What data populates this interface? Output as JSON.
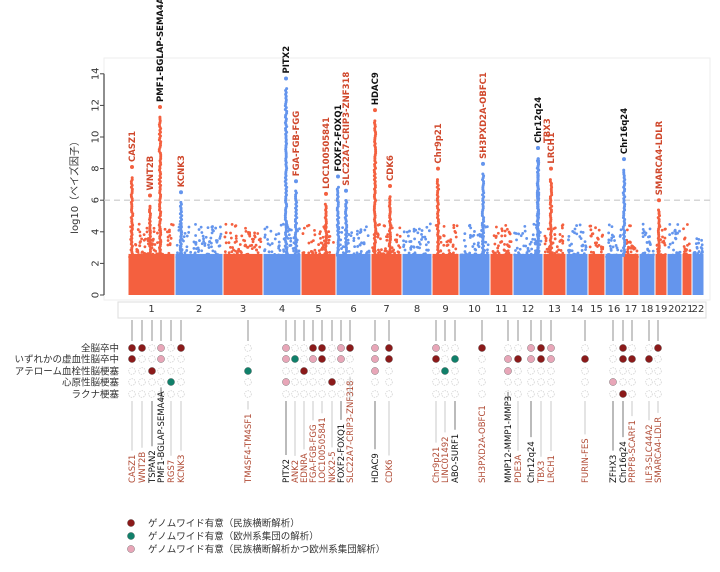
{
  "chart_data": {
    "type": "scatter",
    "subtype": "manhattan",
    "ylabel": "log10（ベイズ因子）",
    "ylim": [
      0,
      14
    ],
    "yticks": [
      0,
      2,
      4,
      6,
      8,
      10,
      12,
      14
    ],
    "threshold": 6,
    "grid": false,
    "colors": {
      "odd": "#f4603f",
      "even": "#6495ed",
      "label_red": "#d0482c",
      "label_black": "#111111",
      "threshold": "#c8c8c8"
    },
    "chromosomes": [
      "1",
      "2",
      "3",
      "4",
      "5",
      "6",
      "7",
      "8",
      "9",
      "10",
      "11",
      "12",
      "13",
      "14",
      "15",
      "16",
      "17",
      "18",
      "19",
      "20",
      "21",
      "22"
    ],
    "peaks": [
      {
        "label": "CASZ1",
        "chr": "1",
        "value": 8.1,
        "label_color": "red"
      },
      {
        "label": "WNT2B",
        "chr": "1",
        "value": 6.3,
        "label_color": "red"
      },
      {
        "label": "PMF1-BGLAP-SEMA4A",
        "chr": "1",
        "value": 11.9,
        "label_color": "black"
      },
      {
        "label": "KCNK3",
        "chr": "2",
        "value": 6.5,
        "label_color": "red"
      },
      {
        "label": "PITX2",
        "chr": "4",
        "value": 13.7,
        "label_color": "black"
      },
      {
        "label": "FGA-FGB-FGG",
        "chr": "4",
        "value": 7.2,
        "label_color": "red"
      },
      {
        "label": "LOC100505841",
        "chr": "5",
        "value": 6.4,
        "label_color": "red"
      },
      {
        "label": "FOXF2-FOXQ1",
        "chr": "6",
        "value": 7.5,
        "label_color": "black"
      },
      {
        "label": "SLC22A7-CRIP3-ZNF318",
        "chr": "6",
        "value": 6.6,
        "label_color": "red"
      },
      {
        "label": "HDAC9",
        "chr": "7",
        "value": 11.7,
        "label_color": "black"
      },
      {
        "label": "CDK6",
        "chr": "7",
        "value": 6.9,
        "label_color": "red"
      },
      {
        "label": "Chr9p21",
        "chr": "9",
        "value": 8.0,
        "label_color": "red"
      },
      {
        "label": "SH3PXD2A-OBFC1",
        "chr": "10",
        "value": 8.3,
        "label_color": "red"
      },
      {
        "label": "Chr12q24",
        "chr": "12",
        "value": 9.3,
        "label_color": "black"
      },
      {
        "label": "TBX3",
        "chr": "12",
        "value": 9.3,
        "label_color": "red"
      },
      {
        "label": "LRCH1",
        "chr": "13",
        "value": 8.0,
        "label_color": "red"
      },
      {
        "label": "Chr16q24",
        "chr": "16",
        "value": 8.6,
        "label_color": "black"
      },
      {
        "label": "SMARCA4-LDLR",
        "chr": "19",
        "value": 6.0,
        "label_color": "red"
      }
    ]
  },
  "matrix": {
    "rows": [
      "全脳卒中",
      "いずれかの虚血性脳卒中",
      "アテローム血栓性脳梗塞",
      "心原性脳梗塞",
      "ラクナ梗塞"
    ],
    "colors": {
      "D": "#8b1a1a",
      "G": "#10806a",
      "P": "#e8a6b8"
    },
    "columns": [
      {
        "gene": "CASZ1",
        "color": "red",
        "states": "DD000"
      },
      {
        "gene": "WNT2B",
        "color": "red",
        "states": "D0000"
      },
      {
        "gene": "TSPAN2",
        "color": "black",
        "states": "00D00"
      },
      {
        "gene": "PMF1-BGLAP-SEMA4A",
        "color": "black",
        "states": "PP000"
      },
      {
        "gene": "RGS7",
        "color": "red",
        "states": "000G0"
      },
      {
        "gene": "KCNK3",
        "color": "red",
        "states": "D0000"
      },
      {
        "gene": "TM4SF4-TM4SF1",
        "color": "red",
        "states": "00G00"
      },
      {
        "gene": "PITX2",
        "color": "black",
        "states": "PP0P0"
      },
      {
        "gene": "ANK2",
        "color": "red",
        "states": "0G000"
      },
      {
        "gene": "EDNRA",
        "color": "red",
        "states": "00D00"
      },
      {
        "gene": "FGA-FGB-FGG",
        "color": "red",
        "states": "DP000"
      },
      {
        "gene": "LOC100505841",
        "color": "red",
        "states": "DD000"
      },
      {
        "gene": "NKX2-5",
        "color": "red",
        "states": "000D0"
      },
      {
        "gene": "FOXF2-FOXQ1",
        "color": "black",
        "states": "PP000"
      },
      {
        "gene": "SLC22A7-CRIP3-ZNF318",
        "color": "red",
        "states": "D0000"
      },
      {
        "gene": "HDAC9",
        "color": "black",
        "states": "PPP00"
      },
      {
        "gene": "CDK6",
        "color": "red",
        "states": "DD000"
      },
      {
        "gene": "Chr9p21",
        "color": "red",
        "states": "PD000"
      },
      {
        "gene": "LINC01492",
        "color": "red",
        "states": "00G00"
      },
      {
        "gene": "ABO-SURF1",
        "color": "black",
        "states": "0G000"
      },
      {
        "gene": "SH3PXD2A-OBFC1",
        "color": "red",
        "states": "D0000"
      },
      {
        "gene": "MMP12-MMP1-MMP3",
        "color": "black",
        "states": "0PP00"
      },
      {
        "gene": "PDE3A",
        "color": "red",
        "states": "0D000"
      },
      {
        "gene": "Chr12q24",
        "color": "black",
        "states": "PP000"
      },
      {
        "gene": "TBX3",
        "color": "red",
        "states": "DD000"
      },
      {
        "gene": "LRCH1",
        "color": "red",
        "states": "PP000"
      },
      {
        "gene": "FURIN-FES",
        "color": "red",
        "states": "0D000"
      },
      {
        "gene": "ZFHX3",
        "color": "black",
        "states": "000P0"
      },
      {
        "gene": "Chr16q24",
        "color": "black",
        "states": "DD00D"
      },
      {
        "gene": "PRPF8-SCARF1",
        "color": "red",
        "states": "0D000"
      },
      {
        "gene": "ILF3-SLC44A2",
        "color": "red",
        "states": "0D000"
      },
      {
        "gene": "SMARCA4-LDLR",
        "color": "red",
        "states": "D0000"
      }
    ]
  },
  "legend": [
    {
      "key": "D",
      "text": "ゲノムワイド有意（民族横断解析）"
    },
    {
      "key": "G",
      "text": "ゲノムワイド有意（欧州系集団の解析）"
    },
    {
      "key": "P",
      "text": "ゲノムワイド有意（民族横断解析かつ欧州系集団解析）"
    }
  ]
}
